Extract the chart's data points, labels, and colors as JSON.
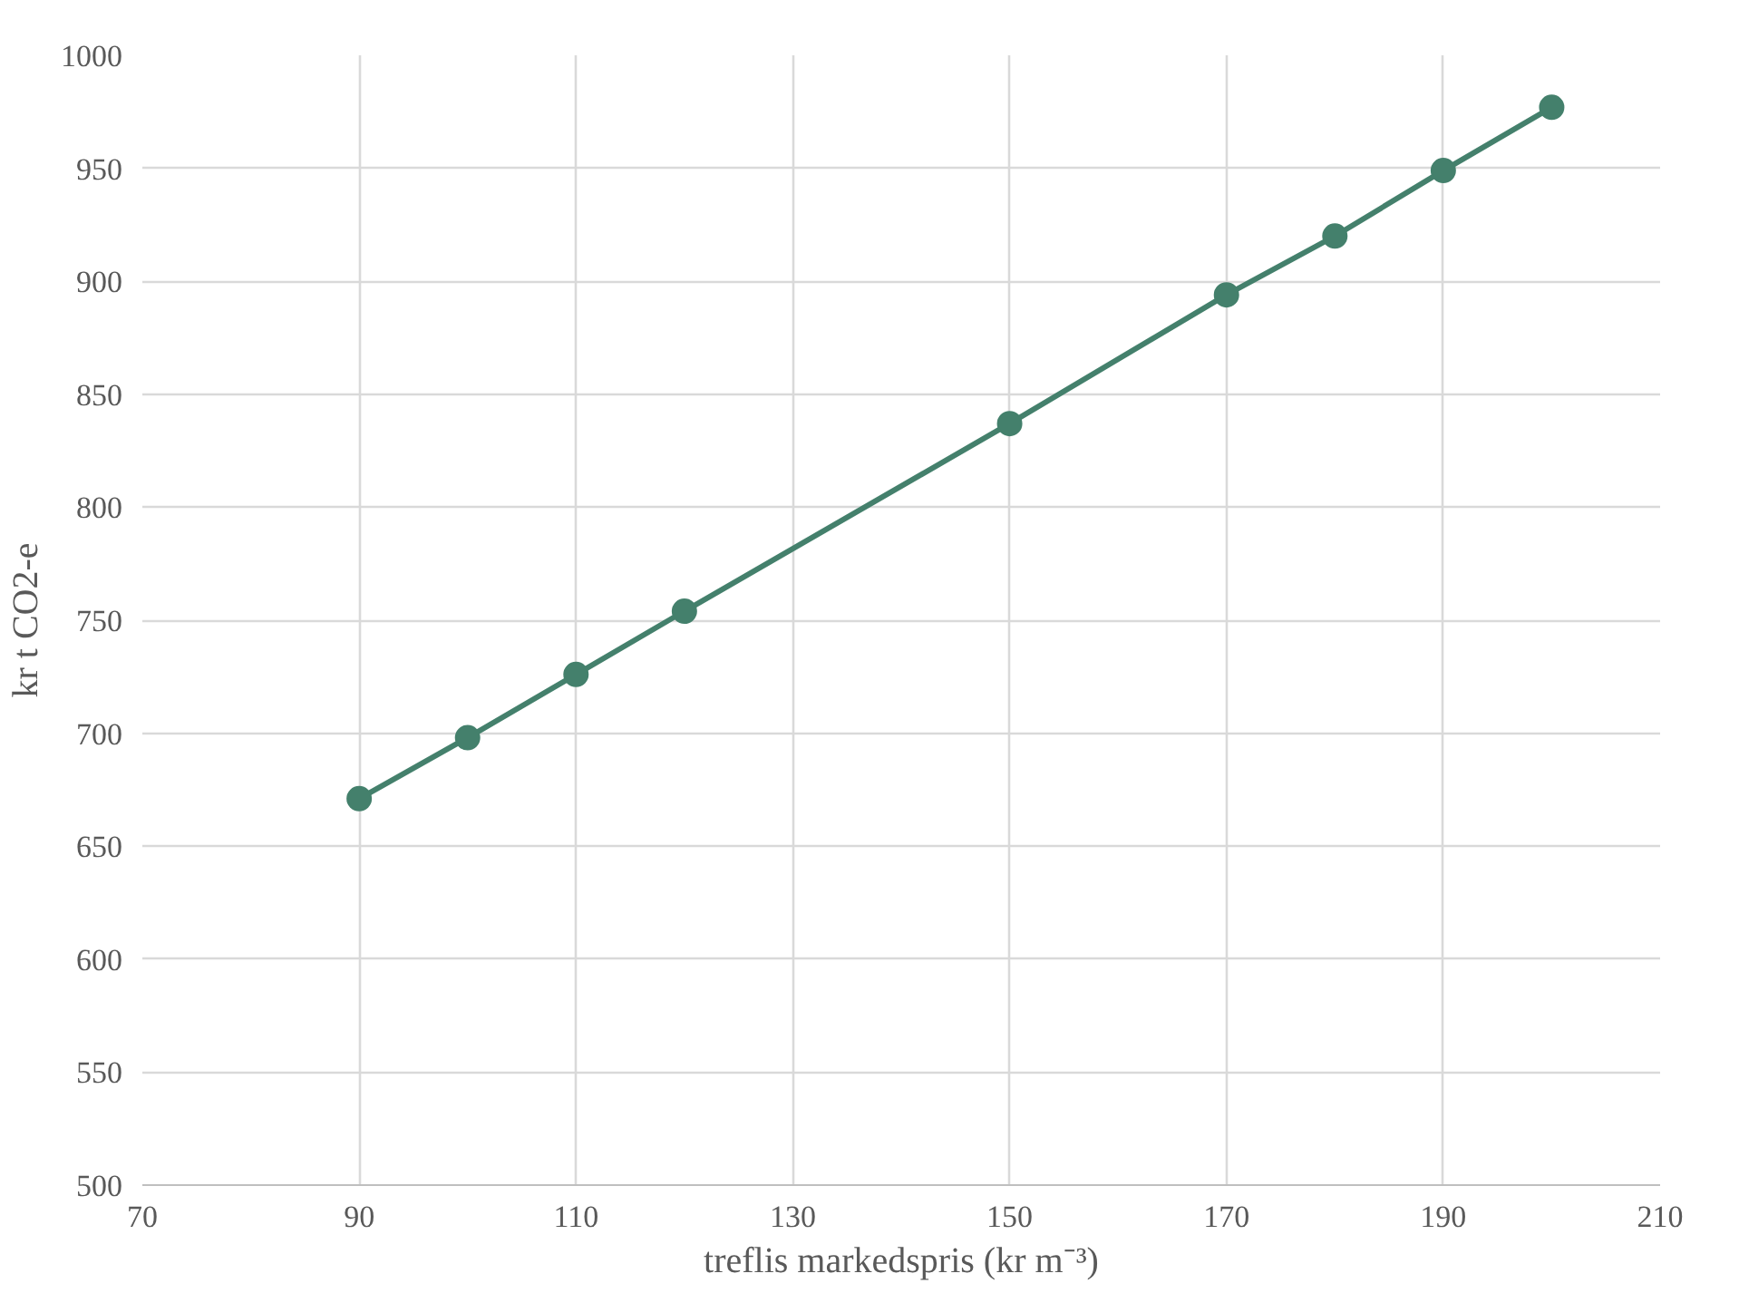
{
  "chart_data": {
    "type": "line",
    "xlabel": "treflis markedspris (kr m⁻³)",
    "ylabel": "kr t CO2-e",
    "x": [
      90,
      100,
      110,
      120,
      150,
      170,
      180,
      190,
      200
    ],
    "series": [
      {
        "color": "#44806c",
        "values": [
          671,
          698,
          726,
          754,
          837,
          894,
          920,
          949,
          977
        ]
      }
    ],
    "xlim": [
      70,
      210
    ],
    "xticks": [
      70,
      90,
      110,
      130,
      150,
      170,
      190,
      210
    ],
    "ylim": [
      500,
      1000
    ],
    "yticks": [
      500,
      550,
      600,
      650,
      700,
      750,
      800,
      850,
      900,
      950,
      1000
    ],
    "grid": true,
    "marker": "circle",
    "line_style": "solid"
  }
}
